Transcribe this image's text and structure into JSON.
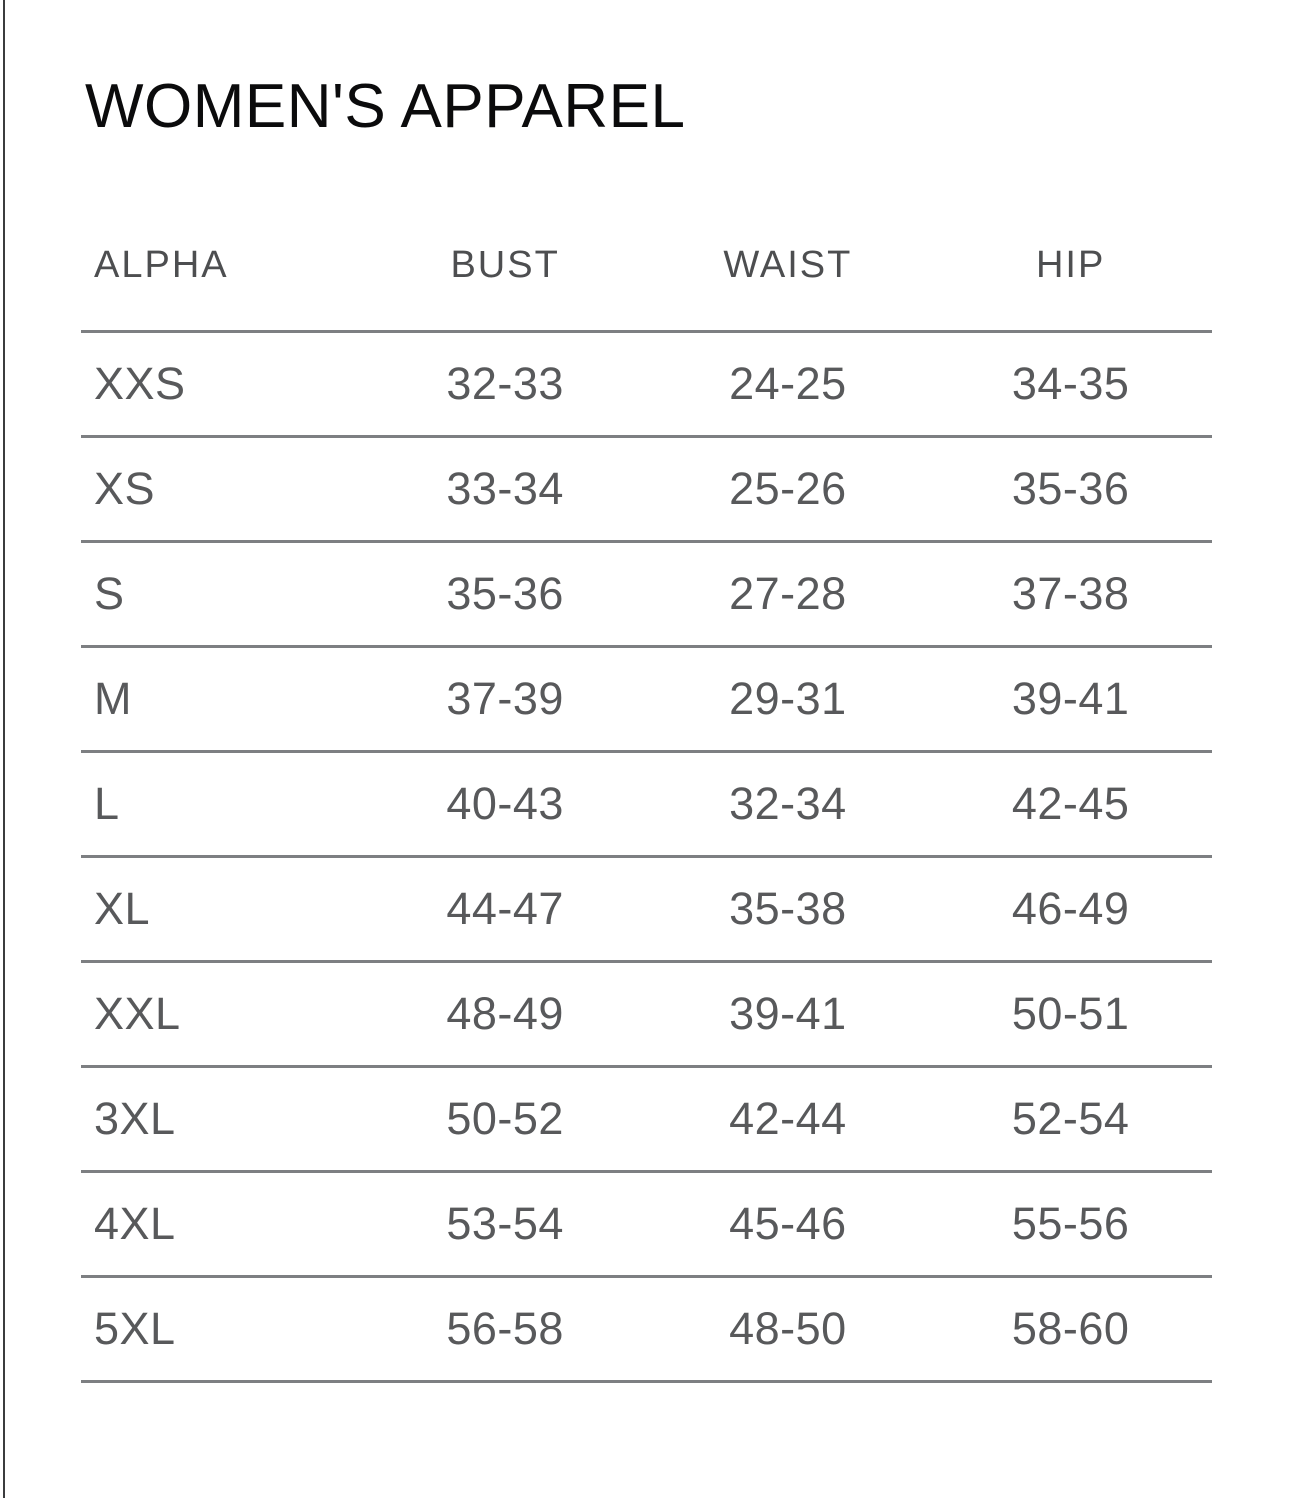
{
  "page": {
    "title": "WOMEN'S APPAREL"
  },
  "table": {
    "headers": [
      "ALPHA",
      "BUST",
      "WAIST",
      "HIP"
    ],
    "rows": [
      [
        "XXS",
        "32-33",
        "24-25",
        "34-35"
      ],
      [
        "XS",
        "33-34",
        "25-26",
        "35-36"
      ],
      [
        "S",
        "35-36",
        "27-28",
        "37-38"
      ],
      [
        "M",
        "37-39",
        "29-31",
        "39-41"
      ],
      [
        "L",
        "40-43",
        "32-34",
        "42-45"
      ],
      [
        "XL",
        "44-47",
        "35-38",
        "46-49"
      ],
      [
        "XXL",
        "48-49",
        "39-41",
        "50-51"
      ],
      [
        "3XL",
        "50-52",
        "42-44",
        "52-54"
      ],
      [
        "4XL",
        "53-54",
        "45-46",
        "55-56"
      ],
      [
        "5XL",
        "56-58",
        "48-50",
        "58-60"
      ]
    ]
  },
  "chart_data": {
    "type": "table",
    "title": "WOMEN'S APPAREL",
    "columns": [
      "ALPHA",
      "BUST",
      "WAIST",
      "HIP"
    ],
    "rows": [
      {
        "alpha": "XXS",
        "bust": "32-33",
        "waist": "24-25",
        "hip": "34-35"
      },
      {
        "alpha": "XS",
        "bust": "33-34",
        "waist": "25-26",
        "hip": "35-36"
      },
      {
        "alpha": "S",
        "bust": "35-36",
        "waist": "27-28",
        "hip": "37-38"
      },
      {
        "alpha": "M",
        "bust": "37-39",
        "waist": "29-31",
        "hip": "39-41"
      },
      {
        "alpha": "L",
        "bust": "40-43",
        "waist": "32-34",
        "hip": "42-45"
      },
      {
        "alpha": "XL",
        "bust": "44-47",
        "waist": "35-38",
        "hip": "46-49"
      },
      {
        "alpha": "XXL",
        "bust": "48-49",
        "waist": "39-41",
        "hip": "50-51"
      },
      {
        "alpha": "3XL",
        "bust": "50-52",
        "waist": "42-44",
        "hip": "52-54"
      },
      {
        "alpha": "4XL",
        "bust": "53-54",
        "waist": "45-46",
        "hip": "55-56"
      },
      {
        "alpha": "5XL",
        "bust": "56-58",
        "waist": "48-50",
        "hip": "58-60"
      }
    ]
  },
  "colors": {
    "title": "#0b0b0c",
    "header_text": "#4d4e50",
    "cell_text": "#58595b",
    "divider": "#7d7f82",
    "left_border": "#3b3c3e",
    "background": "#ffffff"
  }
}
